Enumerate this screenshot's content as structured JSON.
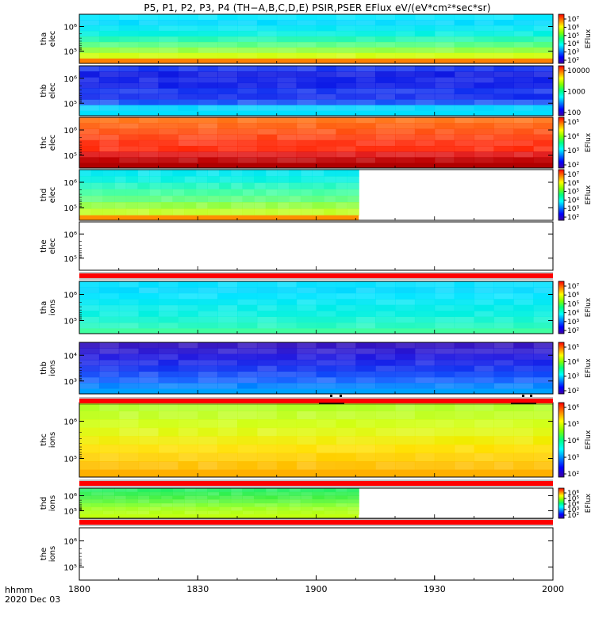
{
  "title": "P5, P1, P2, P3, P4 (TH−A,B,C,D,E) PSIR,PSER EFlux eV/(eV*cm²*sec*sr)",
  "footer": {
    "line1": "hhmm",
    "line2": "2020 Dec 03"
  },
  "chart_data": {
    "type": "heatmap",
    "x": {
      "ticks": [
        "1800",
        "1830",
        "1900",
        "1930",
        "2000"
      ],
      "range": [
        "18:00",
        "20:00"
      ]
    },
    "panels": [
      {
        "label": [
          "tha",
          "elec"
        ],
        "yticks": [
          "10⁶",
          "10⁵"
        ],
        "colorscale": "rainbow",
        "colorbar": {
          "ticks": [
            "10⁷",
            "10⁶",
            "10⁵",
            "10⁴",
            "10³",
            "10²"
          ],
          "title": "EFlux"
        },
        "rows": [
          "#00e8ff",
          "#00d8ff",
          "#00e6f4",
          "#00f0e0",
          "#20f8b0",
          "#50ff80",
          "#90ff40",
          "#d0ff10"
        ],
        "bottom": "#ff8000",
        "data_end": 1.0
      },
      {
        "label": [
          "thb",
          "elec"
        ],
        "yticks": [
          "10⁶",
          "10⁵"
        ],
        "colorscale": "rainbow",
        "colorbar": {
          "ticks": [
            "10000",
            "1000",
            "100"
          ],
          "title": ""
        },
        "rows": [
          "#1030f0",
          "#0a14e0",
          "#0c1ce8",
          "#0a18e6",
          "#1030f0",
          "#0c24ec",
          "#1450f8",
          "#00d4ff"
        ],
        "bottom": "#00e0ff",
        "data_end": 1.0
      },
      {
        "label": [
          "thc",
          "elec"
        ],
        "yticks": [
          "10⁶",
          "10⁵"
        ],
        "colorscale": "rainbow",
        "colorbar": {
          "ticks": [
            "10⁵",
            "10⁴",
            "10³",
            "10²"
          ],
          "title": "EFlux"
        },
        "rows": [
          "#ff7010",
          "#ff6010",
          "#ff5010",
          "#ff4010",
          "#ff3010",
          "#ff2808",
          "#e01010",
          "#c00000"
        ],
        "bottom": "#b00000",
        "data_end": 1.0
      },
      {
        "label": [
          "thd",
          "elec"
        ],
        "yticks": [
          "10⁶",
          "10⁵"
        ],
        "colorscale": "rainbow",
        "colorbar": {
          "ticks": [
            "10⁷",
            "10⁶",
            "10⁵",
            "10⁴",
            "10³",
            "10²"
          ],
          "title": "EFlux"
        },
        "rows": [
          "#00e8f0",
          "#00f0e0",
          "#20f8c0",
          "#40ffa0",
          "#60ff80",
          "#90ff40",
          "#c0ff20"
        ],
        "bottom": "#ff9000",
        "data_end": 0.59
      },
      {
        "label": [
          "the",
          "elec"
        ],
        "yticks": [
          "10⁶",
          "10⁵"
        ],
        "colorscale": "rainbow",
        "colorbar": null,
        "rows": [],
        "bottom": "",
        "data_end": 0.0
      },
      {
        "label": [
          "tha",
          "ions"
        ],
        "yticks": [
          "10⁶",
          "10⁵"
        ],
        "colorscale": "rainbow",
        "colorbar": {
          "ticks": [
            "10⁷",
            "10⁶",
            "10⁵",
            "10⁴",
            "10³",
            "10²"
          ],
          "title": "EFlux"
        },
        "rows": [
          "#00e0ff",
          "#00d8ff",
          "#00e4ff",
          "#00e8f4",
          "#00ece8",
          "#00f0e0",
          "#10f4d0",
          "#20f8c0"
        ],
        "bottom": "#40ffa0",
        "data_end": 1.0
      },
      {
        "label": [
          "thb",
          "ions"
        ],
        "yticks": [
          "10⁴",
          "10³"
        ],
        "colorscale": "rainbow",
        "colorbar": {
          "ticks": [
            "10⁵",
            "10⁴",
            "10³",
            "10²"
          ],
          "title": "EFlux"
        },
        "rows": [
          "#3010c0",
          "#2814d0",
          "#2018e0",
          "#1420e8",
          "#1030f0",
          "#1048f8",
          "#1460ff",
          "#0080ff"
        ],
        "bottom": "#00a0ff",
        "data_end": 1.0
      },
      {
        "label": [
          "thc",
          "ions"
        ],
        "yticks": [
          "10⁶",
          "10⁵"
        ],
        "colorscale": "rainbow",
        "colorbar": {
          "ticks": [
            "10⁶",
            "10⁵",
            "10⁴",
            "10³",
            "10²"
          ],
          "title": "EFlux"
        },
        "rows": [
          "#b0ff20",
          "#c0ff20",
          "#d0ff10",
          "#e0f810",
          "#f0ec00",
          "#ffe000",
          "#ffd000",
          "#ffc000"
        ],
        "bottom": "#ffb000",
        "data_end": 1.0
      },
      {
        "label": [
          "thd",
          "ions"
        ],
        "yticks": [
          "10⁶",
          "10⁵"
        ],
        "colorscale": "rainbow",
        "colorbar": {
          "ticks": [
            "10⁶",
            "10⁵",
            "10⁴",
            "10³",
            "10²"
          ],
          "title": "EFlux"
        },
        "rows": [
          "#20f060",
          "#30f050",
          "#40f040",
          "#60f840",
          "#80ff30",
          "#a0ff20",
          "#b0ff10"
        ],
        "bottom": "#c0ff10",
        "data_end": 0.59
      },
      {
        "label": [
          "the",
          "ions"
        ],
        "yticks": [
          "10⁶",
          "10⁵"
        ],
        "colorscale": "rainbow",
        "colorbar": null,
        "rows": [],
        "bottom": "",
        "data_end": 0.0
      }
    ],
    "flag_bars_after_panels": [
      4,
      6,
      7,
      8
    ],
    "colors": {
      "flag": "#ff0000",
      "axis": "#000000"
    }
  }
}
